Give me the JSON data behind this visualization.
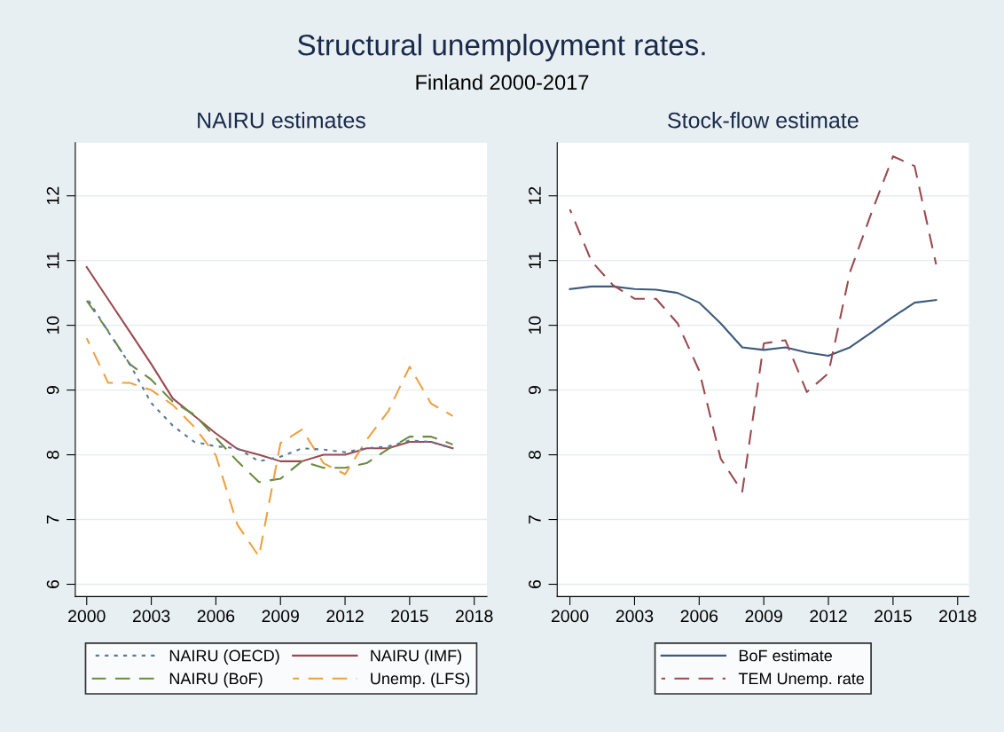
{
  "chart_data": [
    {
      "type": "other",
      "title": "Structural unemployment rates.",
      "subtitle": "Finland 2000-2017"
    },
    {
      "type": "line",
      "title": "NAIRU estimates",
      "x": [
        2000,
        2001,
        2002,
        2003,
        2004,
        2005,
        2006,
        2007,
        2008,
        2009,
        2010,
        2011,
        2012,
        2013,
        2014,
        2015,
        2016,
        2017
      ],
      "series": [
        {
          "name": "NAIRU (OECD)",
          "color": "#5a7a9a",
          "line_style": "dotted",
          "values": [
            10.43,
            9.9,
            9.4,
            8.8,
            8.45,
            8.2,
            8.13,
            8.1,
            7.9,
            7.97,
            8.1,
            8.08,
            8.04,
            8.1,
            8.13,
            8.22,
            8.2,
            8.1
          ]
        },
        {
          "name": "NAIRU (IMF)",
          "color": "#9a4a50",
          "line_style": "solid",
          "values": [
            10.9,
            10.4,
            9.9,
            9.4,
            8.87,
            8.6,
            8.33,
            8.09,
            8.0,
            7.9,
            7.9,
            8.0,
            8.0,
            8.1,
            8.1,
            8.2,
            8.2,
            8.1
          ]
        },
        {
          "name": "NAIRU (BoF)",
          "color": "#6a8a40",
          "line_style": "dashed",
          "values": [
            10.38,
            9.91,
            9.4,
            9.16,
            8.82,
            8.62,
            8.26,
            7.9,
            7.58,
            7.63,
            7.9,
            7.8,
            7.8,
            7.87,
            8.09,
            8.28,
            8.28,
            8.16
          ]
        },
        {
          "name": "Unemp. (LFS)",
          "color": "#eea040",
          "line_style": "dashed",
          "values": [
            9.8,
            9.11,
            9.11,
            9.0,
            8.77,
            8.43,
            7.99,
            6.92,
            6.43,
            8.18,
            8.39,
            7.87,
            7.7,
            8.23,
            8.67,
            9.36,
            8.79,
            8.6
          ]
        }
      ],
      "xlim": [
        1999.47,
        2018.59
      ],
      "xticks": [
        2000,
        2003,
        2006,
        2009,
        2012,
        2015,
        2018
      ],
      "ylim": [
        5.81,
        12.82
      ],
      "yticks": [
        6,
        7,
        8,
        9,
        10,
        11,
        12
      ],
      "grid": "y",
      "legend": "bottom"
    },
    {
      "type": "line",
      "title": "Stock-flow estimate",
      "x": [
        2000,
        2001,
        2002,
        2003,
        2004,
        2005,
        2006,
        2007,
        2008,
        2009,
        2010,
        2011,
        2012,
        2013,
        2014,
        2015,
        2016,
        2017
      ],
      "series": [
        {
          "name": "BoF estimate",
          "color": "#3c5a7a",
          "line_style": "solid",
          "values": [
            10.56,
            10.6,
            10.6,
            10.56,
            10.55,
            10.5,
            10.35,
            10.03,
            9.66,
            9.62,
            9.66,
            9.58,
            9.53,
            9.66,
            9.89,
            10.13,
            10.35,
            10.39
          ]
        },
        {
          "name": "TEM Unemp. rate",
          "color": "#9a4a50",
          "line_style": "dashed",
          "values": [
            11.79,
            10.99,
            10.62,
            10.41,
            10.41,
            10.03,
            9.3,
            7.94,
            7.43,
            9.72,
            9.77,
            8.97,
            9.26,
            10.82,
            11.74,
            12.61,
            12.46,
            10.94
          ]
        }
      ],
      "xlim": [
        1999.41,
        2018.52
      ],
      "xticks": [
        2000,
        2003,
        2006,
        2009,
        2012,
        2015,
        2018
      ],
      "ylim": [
        5.81,
        12.82
      ],
      "yticks": [
        6,
        7,
        8,
        9,
        10,
        11,
        12
      ],
      "grid": "y",
      "legend": "bottom"
    }
  ]
}
